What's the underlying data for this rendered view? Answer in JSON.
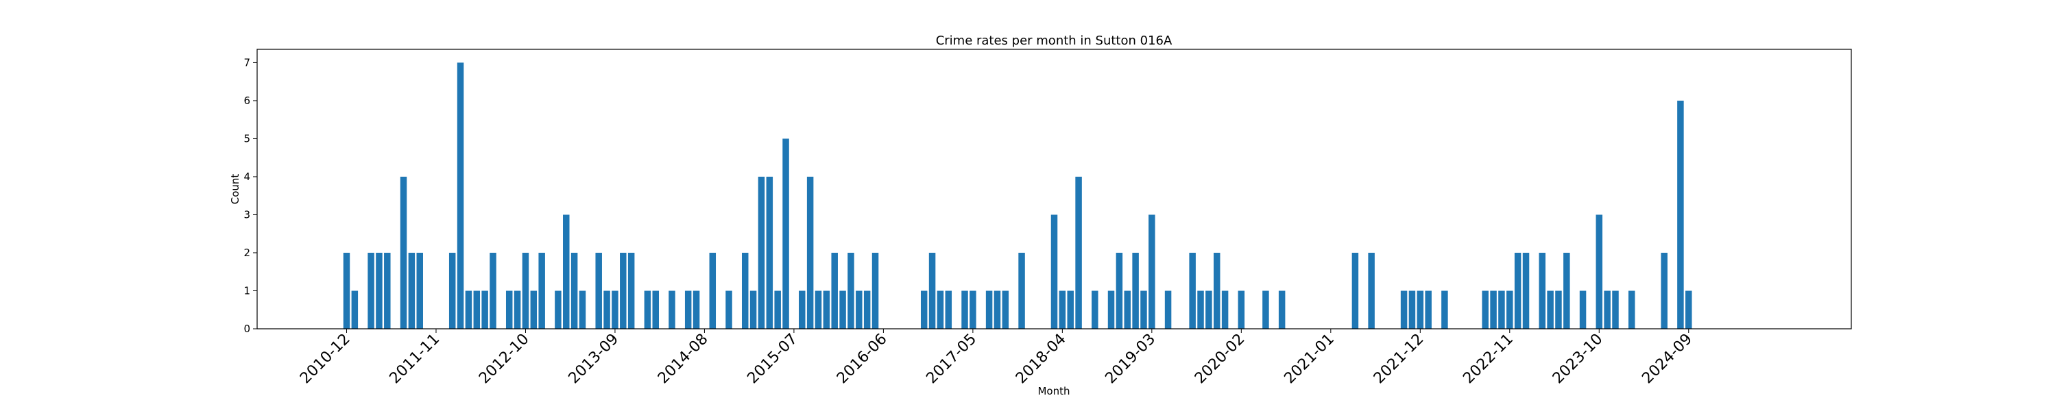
{
  "chart_data": {
    "type": "bar",
    "title": "Crime rates per month in Sutton 016A",
    "xlabel": "Month",
    "ylabel": "Count",
    "ylim": [
      0,
      7.35
    ],
    "yticks": [
      0,
      1,
      2,
      3,
      4,
      5,
      6,
      7
    ],
    "xlim": [
      "2010-01",
      "2026-05"
    ],
    "xticks": [
      "2010-12",
      "2011-11",
      "2012-10",
      "2013-09",
      "2014-08",
      "2015-07",
      "2016-06",
      "2017-05",
      "2018-04",
      "2019-03",
      "2020-02",
      "2021-01",
      "2021-12",
      "2022-11",
      "2023-10",
      "2024-09"
    ],
    "bar_color": "#1f77b4",
    "grid": false,
    "x": [
      "2010-12",
      "2011-01",
      "2011-03",
      "2011-04",
      "2011-05",
      "2011-07",
      "2011-08",
      "2011-09",
      "2012-01",
      "2012-02",
      "2012-03",
      "2012-04",
      "2012-05",
      "2012-06",
      "2012-08",
      "2012-09",
      "2012-10",
      "2012-11",
      "2012-12",
      "2013-02",
      "2013-03",
      "2013-04",
      "2013-05",
      "2013-07",
      "2013-08",
      "2013-09",
      "2013-10",
      "2013-11",
      "2014-01",
      "2014-02",
      "2014-04",
      "2014-06",
      "2014-07",
      "2014-09",
      "2014-11",
      "2015-01",
      "2015-02",
      "2015-03",
      "2015-04",
      "2015-05",
      "2015-06",
      "2015-08",
      "2015-09",
      "2015-10",
      "2015-11",
      "2015-12",
      "2016-01",
      "2016-02",
      "2016-03",
      "2016-04",
      "2016-05",
      "2016-11",
      "2016-12",
      "2017-01",
      "2017-02",
      "2017-04",
      "2017-05",
      "2017-07",
      "2017-08",
      "2017-09",
      "2017-11",
      "2018-03",
      "2018-04",
      "2018-05",
      "2018-06",
      "2018-08",
      "2018-10",
      "2018-11",
      "2018-12",
      "2019-01",
      "2019-02",
      "2019-03",
      "2019-05",
      "2019-08",
      "2019-09",
      "2019-10",
      "2019-11",
      "2019-12",
      "2020-02",
      "2020-05",
      "2020-07",
      "2021-04",
      "2021-06",
      "2021-10",
      "2021-11",
      "2021-12",
      "2022-01",
      "2022-03",
      "2022-08",
      "2022-09",
      "2022-10",
      "2022-11",
      "2022-12",
      "2023-01",
      "2023-03",
      "2023-04",
      "2023-05",
      "2023-06",
      "2023-08",
      "2023-10",
      "2023-11",
      "2023-12",
      "2024-02",
      "2024-06",
      "2024-08",
      "2024-09"
    ],
    "values": [
      2,
      1,
      2,
      2,
      2,
      4,
      2,
      2,
      2,
      7,
      1,
      1,
      1,
      2,
      1,
      1,
      2,
      1,
      2,
      1,
      3,
      2,
      1,
      2,
      1,
      1,
      2,
      2,
      1,
      1,
      1,
      1,
      1,
      2,
      1,
      2,
      1,
      4,
      4,
      1,
      5,
      1,
      4,
      1,
      1,
      2,
      1,
      2,
      1,
      1,
      2,
      1,
      2,
      1,
      1,
      1,
      1,
      1,
      1,
      1,
      2,
      3,
      1,
      1,
      4,
      1,
      1,
      2,
      1,
      2,
      1,
      3,
      1,
      2,
      1,
      1,
      2,
      1,
      1,
      1,
      1,
      2,
      2,
      1,
      1,
      1,
      1,
      1,
      1,
      1,
      1,
      1,
      2,
      2,
      2,
      1,
      1,
      2,
      1,
      3,
      1,
      1,
      1,
      2,
      6,
      1
    ]
  }
}
